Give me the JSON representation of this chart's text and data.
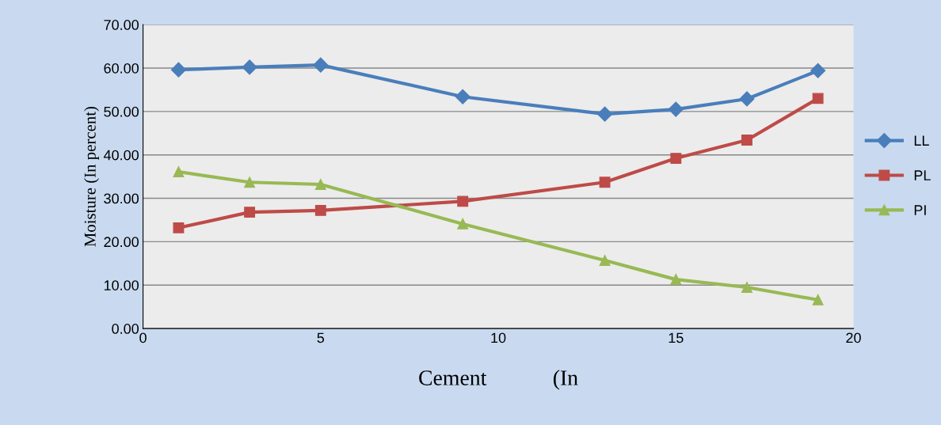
{
  "chart_data": {
    "type": "line",
    "xlabel": "Cement            (In",
    "ylabel": "Moisture (In percent)",
    "x": [
      1,
      3,
      5,
      9,
      13,
      15,
      17,
      19
    ],
    "series": [
      {
        "name": "LL",
        "color": "#4a7ebb",
        "marker": "diamond",
        "values": [
          59.6,
          60.2,
          60.7,
          53.4,
          49.4,
          50.5,
          52.9,
          59.4
        ]
      },
      {
        "name": "PL",
        "color": "#be4b48",
        "marker": "square",
        "values": [
          23.2,
          26.8,
          27.2,
          29.3,
          33.7,
          39.2,
          43.4,
          53.0
        ]
      },
      {
        "name": "PI",
        "color": "#98b954",
        "marker": "triangle",
        "values": [
          36.1,
          33.7,
          33.2,
          24.1,
          15.7,
          11.3,
          9.5,
          6.6
        ]
      }
    ],
    "xlim": [
      0,
      20
    ],
    "xticks": [
      0,
      5,
      10,
      15,
      20
    ],
    "ylim": [
      0,
      70
    ],
    "yticks": [
      {
        "value": 0,
        "label": "0.00"
      },
      {
        "value": 10,
        "label": "10.00"
      },
      {
        "value": 20,
        "label": "20.00"
      },
      {
        "value": 30,
        "label": "30.00"
      },
      {
        "value": 40,
        "label": "40.00"
      },
      {
        "value": 50,
        "label": "50.00"
      },
      {
        "value": 60,
        "label": "60.00"
      },
      {
        "value": 70,
        "label": "70.00"
      }
    ],
    "grid": "y",
    "legend": "right",
    "line_style": "solid"
  }
}
